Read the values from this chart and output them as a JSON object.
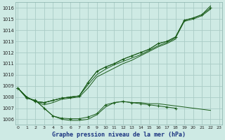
{
  "bg_color": "#ceeae4",
  "grid_color": "#aaccc6",
  "line_color": "#1a5c1a",
  "title": "Graphe pression niveau de la mer (hPa)",
  "ylim": [
    1005.5,
    1016.5
  ],
  "xlim": [
    -0.3,
    23.3
  ],
  "yticks": [
    1006,
    1007,
    1008,
    1009,
    1010,
    1011,
    1012,
    1013,
    1014,
    1015,
    1016
  ],
  "xticks": [
    0,
    1,
    2,
    3,
    4,
    5,
    6,
    7,
    8,
    9,
    10,
    11,
    12,
    13,
    14,
    15,
    16,
    17,
    18,
    19,
    20,
    21,
    22,
    23
  ],
  "series": [
    {
      "x": [
        0,
        1,
        2,
        3,
        4,
        5,
        6,
        7,
        8,
        9,
        10,
        11,
        12,
        13,
        14,
        15,
        16,
        17,
        18,
        19,
        20,
        21,
        22
      ],
      "y": [
        1008.8,
        1008.0,
        1007.6,
        1007.5,
        1007.7,
        1007.9,
        1008.0,
        1008.1,
        1009.3,
        1010.3,
        1010.7,
        1011.0,
        1011.4,
        1011.7,
        1012.0,
        1012.3,
        1012.8,
        1013.0,
        1013.4,
        1014.9,
        1015.1,
        1015.4,
        1016.0
      ],
      "markers": true
    },
    {
      "x": [
        0,
        1,
        2,
        3,
        4,
        5,
        6,
        7,
        8,
        9,
        10,
        11,
        12,
        13,
        14,
        15,
        16,
        17,
        18,
        19,
        20,
        21,
        22
      ],
      "y": [
        1008.8,
        1008.0,
        1007.6,
        1007.5,
        1007.7,
        1007.9,
        1008.0,
        1008.1,
        1009.3,
        1010.3,
        1010.7,
        1011.0,
        1011.4,
        1011.7,
        1012.0,
        1012.3,
        1012.8,
        1013.0,
        1013.4,
        1014.9,
        1015.1,
        1015.4,
        1016.2
      ],
      "markers": false
    },
    {
      "x": [
        0,
        1,
        2,
        3,
        4,
        5,
        6,
        7,
        8,
        9,
        10,
        11,
        12,
        13,
        14,
        15,
        16,
        17,
        18,
        19,
        20,
        21,
        22
      ],
      "y": [
        1008.8,
        1008.0,
        1007.6,
        1007.5,
        1007.7,
        1007.9,
        1008.0,
        1008.1,
        1009.1,
        1010.0,
        1010.5,
        1010.9,
        1011.2,
        1011.5,
        1011.8,
        1012.2,
        1012.6,
        1012.9,
        1013.3,
        1014.8,
        1015.0,
        1015.3,
        1015.9
      ],
      "markers": false
    },
    {
      "x": [
        0,
        1,
        2,
        3,
        4,
        5,
        6,
        7,
        8,
        9,
        10,
        11,
        12,
        13,
        14,
        15,
        16,
        17,
        18
      ],
      "y": [
        1008.8,
        1008.0,
        1007.6,
        1007.3,
        1007.5,
        1007.8,
        1007.9,
        1008.0,
        1008.8,
        1009.8,
        1010.2,
        1010.6,
        1011.0,
        1011.3,
        1011.7,
        1012.1,
        1012.5,
        1012.8,
        1013.2
      ],
      "markers": false
    },
    {
      "x": [
        0,
        1,
        2,
        3,
        4,
        5,
        6,
        7,
        8,
        9,
        10,
        11,
        12,
        13,
        14,
        15,
        16,
        17,
        18
      ],
      "y": [
        1008.8,
        1007.9,
        1007.7,
        1007.0,
        1006.3,
        1006.1,
        1006.05,
        1006.05,
        1006.2,
        1006.5,
        1007.3,
        1007.5,
        1007.6,
        1007.5,
        1007.4,
        1007.3,
        1007.2,
        1007.1,
        1007.0
      ],
      "markers": true
    },
    {
      "x": [
        0,
        1,
        2,
        3,
        4,
        5,
        6,
        7,
        8,
        9,
        10,
        11,
        12,
        13,
        14,
        15,
        16,
        17,
        18,
        19,
        20,
        21,
        22
      ],
      "y": [
        1008.8,
        1007.9,
        1007.7,
        1007.0,
        1006.3,
        1006.0,
        1005.9,
        1005.9,
        1006.0,
        1006.4,
        1007.1,
        1007.5,
        1007.6,
        1007.5,
        1007.5,
        1007.4,
        1007.4,
        1007.3,
        1007.2,
        1007.1,
        1007.0,
        1006.9,
        1006.8
      ],
      "markers": false
    }
  ]
}
